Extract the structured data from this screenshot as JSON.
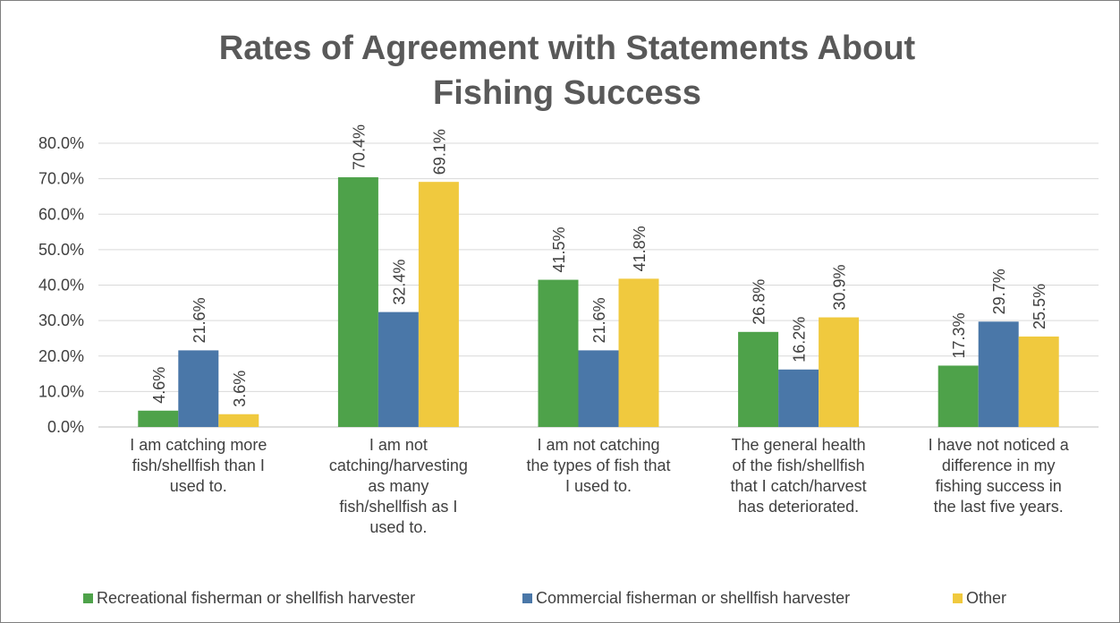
{
  "chart_data": {
    "type": "bar",
    "title_lines": [
      "Rates of Agreement with Statements About",
      "Fishing Success"
    ],
    "categories": [
      [
        "I am catching more",
        "fish/shellfish than I",
        "used to."
      ],
      [
        "I am not",
        "catching/harvesting",
        "as many",
        "fish/shellfish as I",
        "used to."
      ],
      [
        "I am not catching",
        "the types of fish that",
        "I used to."
      ],
      [
        "The general health",
        "of the fish/shellfish",
        "that I catch/harvest",
        "has deteriorated."
      ],
      [
        "I have not noticed a",
        "difference in my",
        "fishing success in",
        "the last five years."
      ]
    ],
    "series": [
      {
        "name": "Recreational fisherman or shellfish harvester",
        "color": "#4ea24a",
        "values": [
          4.6,
          70.4,
          41.5,
          26.8,
          17.3
        ],
        "labels": [
          "4.6%",
          "70.4%",
          "41.5%",
          "26.8%",
          "17.3%"
        ]
      },
      {
        "name": "Commercial fisherman or shellfish harvester",
        "color": "#4a77a8",
        "values": [
          21.6,
          32.4,
          21.6,
          16.2,
          29.7
        ],
        "labels": [
          "21.6%",
          "32.4%",
          "21.6%",
          "16.2%",
          "29.7%"
        ]
      },
      {
        "name": "Other",
        "color": "#f0c93e",
        "values": [
          3.6,
          69.1,
          41.8,
          30.9,
          25.5
        ],
        "labels": [
          "3.6%",
          "69.1%",
          "41.8%",
          "30.9%",
          "25.5%"
        ]
      }
    ],
    "yticks": [
      0,
      10,
      20,
      30,
      40,
      50,
      60,
      70,
      80
    ],
    "ytick_labels": [
      "0.0%",
      "10.0%",
      "20.0%",
      "30.0%",
      "40.0%",
      "50.0%",
      "60.0%",
      "70.0%",
      "80.0%"
    ],
    "ylim": [
      0,
      80
    ],
    "grid": true,
    "legend_position": "bottom",
    "gridline_color": "#d9d9d9"
  }
}
